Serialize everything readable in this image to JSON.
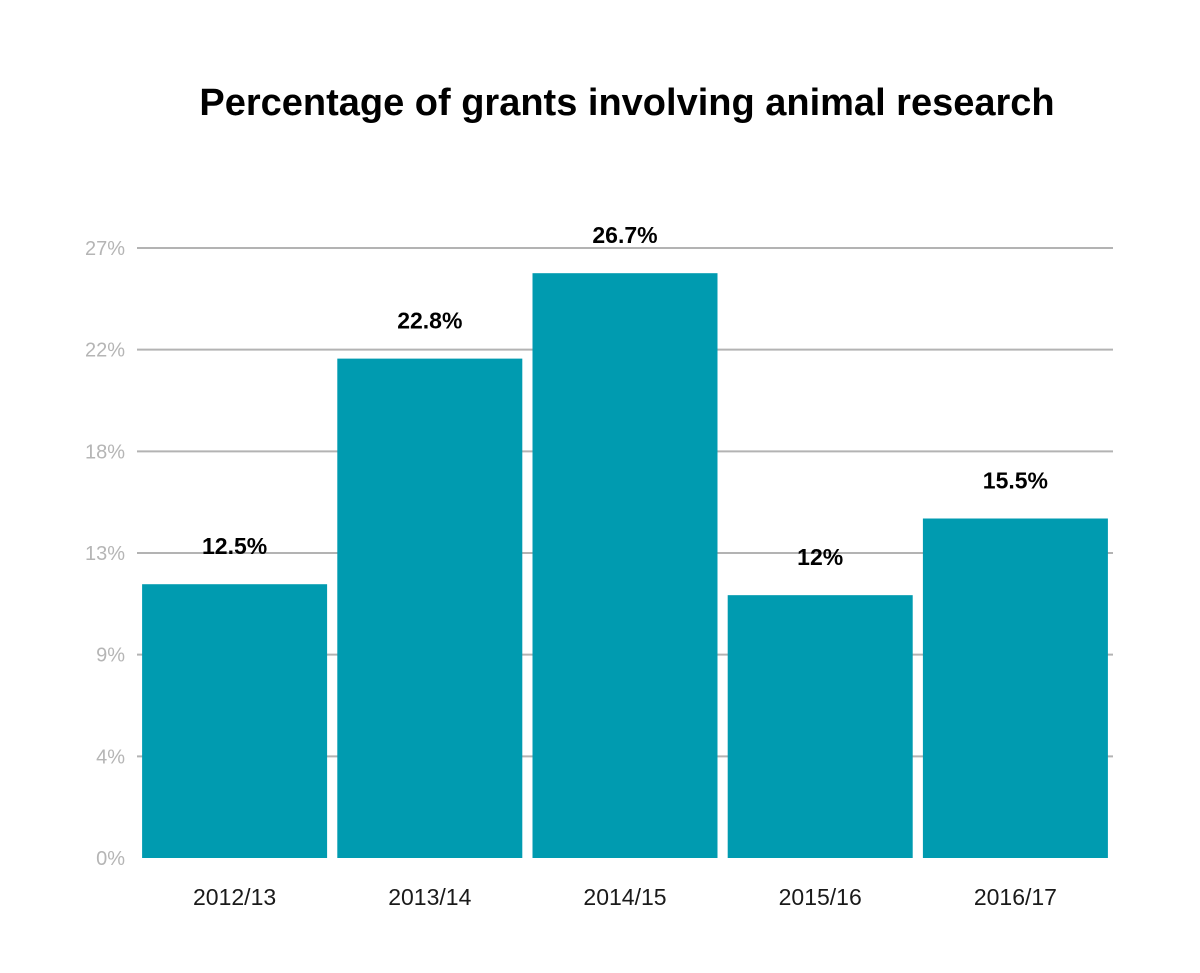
{
  "chart_data": {
    "type": "bar",
    "title": "Percentage of grants involving animal research",
    "xlabel": "",
    "ylabel": "",
    "categories": [
      "2012/13",
      "2013/14",
      "2014/15",
      "2015/16",
      "2016/17"
    ],
    "values": [
      12.5,
      22.8,
      26.7,
      12,
      15.5
    ],
    "data_labels": [
      "12.5%",
      "22.8%",
      "26.7%",
      "12%",
      "15.5%"
    ],
    "y_tick_labels": [
      "0%",
      "4%",
      "9%",
      "13%",
      "18%",
      "22%",
      "27%"
    ],
    "ylim": [
      0,
      27.85
    ],
    "grid": true,
    "legend": "none",
    "colors": {
      "bar": "#009bb0",
      "grid": "#b3b3b3",
      "tick_text": "#b5b5b5",
      "title": "#000000"
    }
  }
}
